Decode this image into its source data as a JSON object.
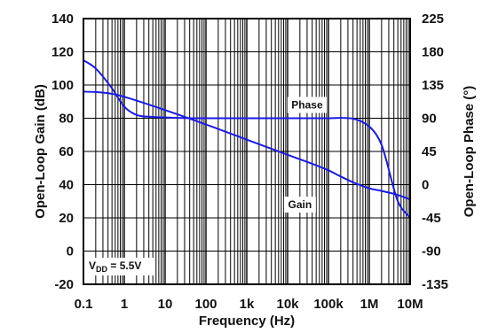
{
  "chart_data": {
    "type": "line",
    "xlabel": "Frequency (Hz)",
    "ylabel": "Open-Loop Gain (dB)",
    "y2label": "Open-Loop Phase (°)",
    "x_scale": "log",
    "xlim": [
      0.1,
      10000000
    ],
    "ylim": [
      -20,
      140
    ],
    "y2lim": [
      -135,
      225
    ],
    "grid": true,
    "x_ticks": [
      {
        "value": 0.1,
        "label": "0.1"
      },
      {
        "value": 1,
        "label": "1"
      },
      {
        "value": 10,
        "label": "10"
      },
      {
        "value": 100,
        "label": "100"
      },
      {
        "value": 1000,
        "label": "1k"
      },
      {
        "value": 10000,
        "label": "10k"
      },
      {
        "value": 100000,
        "label": "100k"
      },
      {
        "value": 1000000,
        "label": "1M"
      },
      {
        "value": 10000000,
        "label": "10M"
      }
    ],
    "y_ticks": [
      "140",
      "120",
      "100",
      "80",
      "60",
      "40",
      "20",
      "0",
      "-20"
    ],
    "y2_ticks": [
      "225",
      "180",
      "135",
      "90",
      "45",
      "0",
      "-45",
      "-90",
      "-135"
    ],
    "series": [
      {
        "name": "Gain",
        "axis": "left",
        "color": "#1a1ae6",
        "x": [
          0.1,
          0.2,
          0.5,
          1,
          2,
          5,
          10,
          20,
          50,
          100,
          1000,
          10000,
          100000,
          1000000,
          2000000,
          5000000,
          10000000
        ],
        "y": [
          115,
          110,
          98,
          87,
          82,
          80.8,
          80.5,
          80.2,
          80,
          80,
          80,
          80,
          80,
          75,
          64,
          30,
          20
        ]
      },
      {
        "name": "Phase",
        "axis": "right",
        "color": "#1a1ae6",
        "x": [
          0.1,
          0.2,
          0.5,
          1,
          10,
          100,
          1000,
          10000,
          100000,
          200000,
          500000,
          1000000,
          2000000,
          5000000,
          10000000
        ],
        "y": [
          126,
          125.5,
          123,
          119,
          101,
          81.5,
          61,
          40.5,
          19.5,
          11,
          1,
          -5,
          -8.5,
          -14,
          -20
        ]
      }
    ],
    "annotations": [
      {
        "text": "Phase",
        "x": 30000,
        "y": 88
      },
      {
        "text": "Gain",
        "x": 20000,
        "y": 28
      }
    ],
    "vdd_label": {
      "main": "V",
      "sub": "DD",
      "rest": " = 5.5V"
    }
  }
}
